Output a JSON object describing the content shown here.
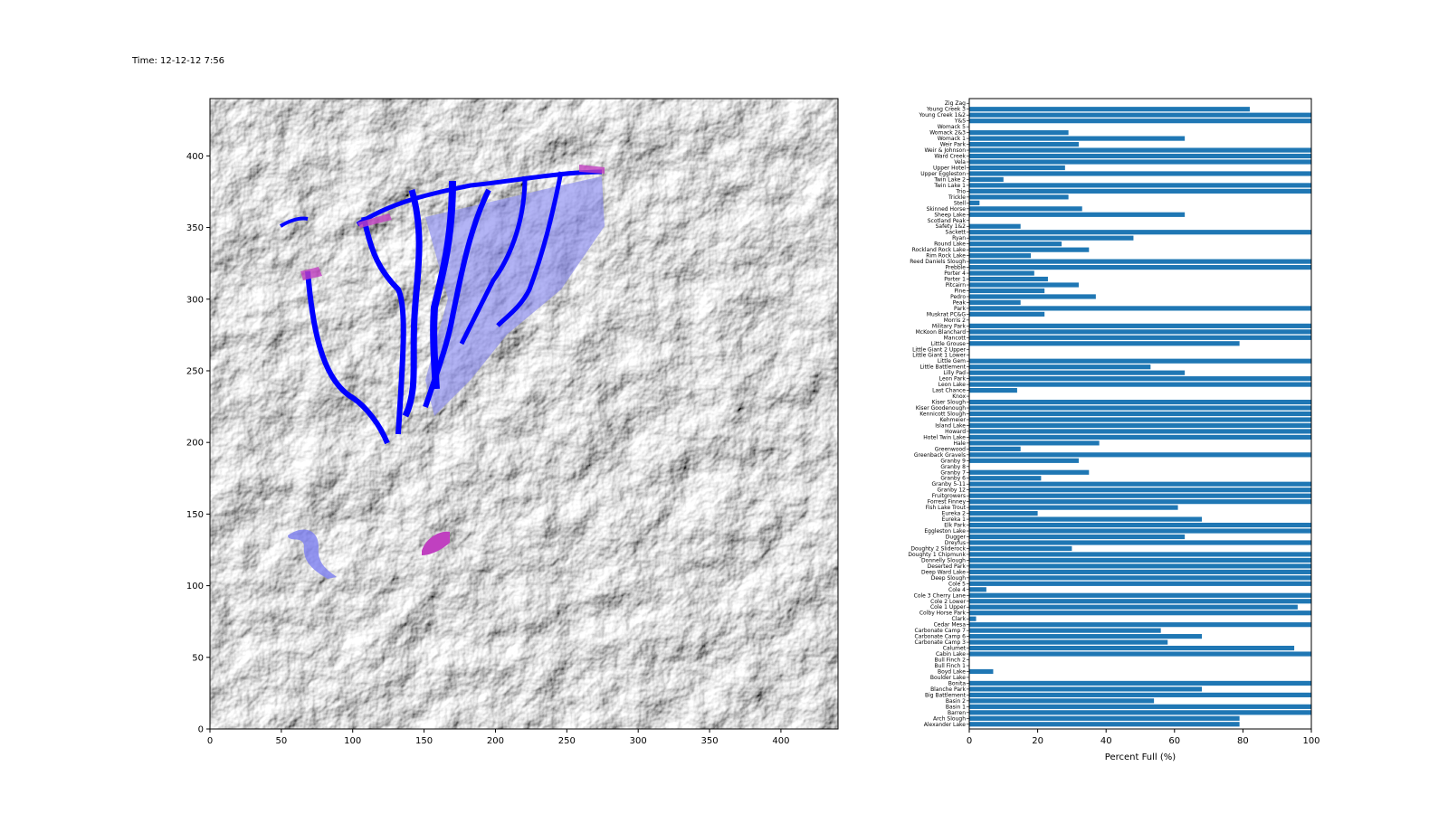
{
  "header": {
    "time_label": "Time: 12-12-12 7:56"
  },
  "colors": {
    "bar": "#1f77b4",
    "flow_dark": "#0000ff",
    "flow_light": "#8a8cf0",
    "deposit": "#c040c0"
  },
  "chart_data": [
    {
      "type": "heatmap",
      "description_kind": "hillshade-map",
      "xlim": [
        0,
        440
      ],
      "ylim": [
        0,
        440
      ],
      "xticks": [
        0,
        50,
        100,
        150,
        200,
        250,
        300,
        350,
        400
      ],
      "yticks": [
        0,
        50,
        100,
        150,
        200,
        250,
        300,
        350,
        400
      ]
    },
    {
      "type": "bar",
      "orientation": "horizontal",
      "xlabel": "Percent Full (%)",
      "xlim": [
        0,
        100
      ],
      "xticks": [
        0,
        20,
        40,
        60,
        80,
        100
      ],
      "categories": [
        "Zig Zag",
        "Young Creek 3",
        "Young Creek 1&2",
        "Y&S",
        "Womack 5",
        "Womack 2&3",
        "Womack 1",
        "Weir Park",
        "Weir & Johnson",
        "Ward Creek",
        "Vela",
        "Upper Hotel",
        "Upper Eggleston",
        "Twin Lake 2",
        "Twin Lake 1",
        "Trio",
        "Trickle",
        "Stell",
        "Skinned Horse",
        "Sheep Lake",
        "Scotland Peak",
        "Safety 1&2",
        "Sackett",
        "Ryan",
        "Round Lake",
        "Rockland Rock Lake",
        "Rim Rock Lake",
        "Reed Daniels Slough",
        "Prebble",
        "Porter 4",
        "Porter 1",
        "Pitcairn",
        "Pine",
        "Pedro",
        "Peak",
        "Park",
        "Muskrat PC&G",
        "Morris 2",
        "Military Park",
        "McKoon Blanchard",
        "Mancott",
        "Little Grouse",
        "Little Giant 2 Upper",
        "Little Giant 1 Lower",
        "Little Gem",
        "Little Battlement",
        "Lilly Pad",
        "Leon Park",
        "Leon Lake",
        "Last Chance",
        "Knox",
        "Kiser Slough",
        "Kiser Goodenough",
        "Kennicott Slough",
        "Kehmeier",
        "Island Lake",
        "Howard",
        "Hotel Twin Lake",
        "Hale",
        "Greenwood",
        "Greenback Gravels",
        "Granby 9",
        "Granby 8",
        "Granby 7",
        "Granby 6",
        "Granby 5-11",
        "Granby 12",
        "Fruitgrowers",
        "Forrest Finney",
        "Fish Lake Trout",
        "Eureka 2",
        "Eureka 1",
        "Elk Park",
        "Eggleston Lake",
        "Dugger",
        "Dreyfus",
        "Doughty 2 Sliderock",
        "Doughty 1 Chipmunk",
        "Donnelly Slough",
        "Deserted Park",
        "Deep Ward Lake",
        "Deep Slough",
        "Cole 5",
        "Cole 4",
        "Cole 3 Cherry Lane",
        "Cole 2 Lower",
        "Cole 1 Upper",
        "Colby Horse Park",
        "Clark",
        "Cedar Mesa",
        "Carbonate Camp 7",
        "Carbonate Camp 6",
        "Carbonate Camp 3",
        "Calumet",
        "Cabin Lake",
        "Bull Finch 2",
        "Bull Finch 1",
        "Boyd Lake",
        "Boulder Lake",
        "Bonita",
        "Blanche Park",
        "Big Battlement",
        "Basin 2",
        "Basin 1",
        "Barren",
        "Arch Slough",
        "Alexander Lake"
      ],
      "values": [
        0,
        82,
        100,
        100,
        0,
        29,
        63,
        32,
        100,
        100,
        100,
        28,
        100,
        10,
        100,
        100,
        29,
        3,
        33,
        63,
        0,
        15,
        100,
        48,
        27,
        35,
        18,
        100,
        100,
        19,
        23,
        32,
        22,
        37,
        15,
        100,
        22,
        0,
        100,
        100,
        100,
        79,
        0,
        0,
        100,
        53,
        63,
        100,
        100,
        14,
        0,
        100,
        100,
        100,
        100,
        100,
        100,
        100,
        38,
        15,
        100,
        32,
        0,
        35,
        21,
        100,
        100,
        100,
        100,
        61,
        20,
        68,
        100,
        100,
        63,
        100,
        30,
        100,
        100,
        100,
        100,
        100,
        100,
        5,
        100,
        100,
        96,
        100,
        2,
        100,
        56,
        68,
        58,
        95,
        100,
        0,
        0,
        7,
        0,
        100,
        68,
        100,
        54,
        100,
        100,
        79,
        79
      ]
    }
  ]
}
